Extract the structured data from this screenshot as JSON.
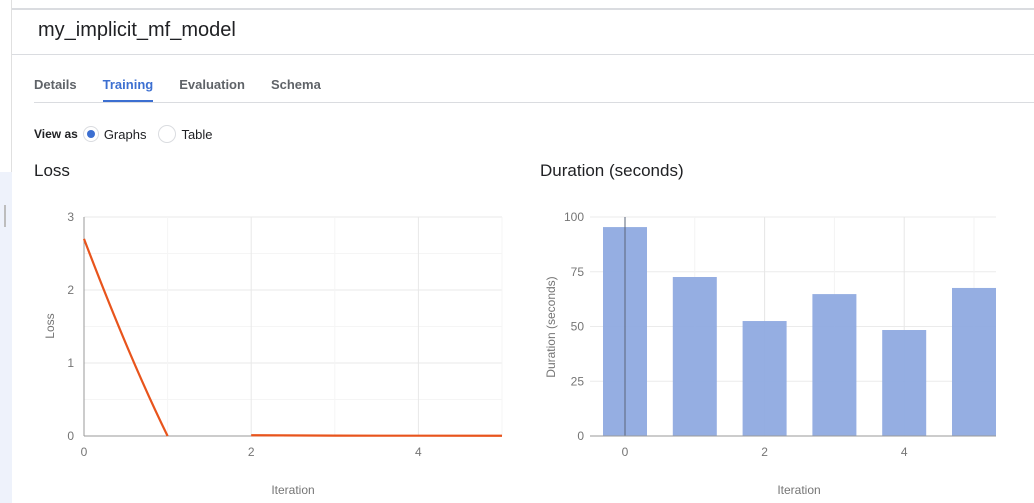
{
  "header": {
    "title": "my_implicit_mf_model"
  },
  "tabs": [
    {
      "label": "Details"
    },
    {
      "label": "Training",
      "active": true
    },
    {
      "label": "Evaluation"
    },
    {
      "label": "Schema"
    }
  ],
  "view_as": {
    "label": "View as",
    "options": [
      {
        "label": "Graphs",
        "selected": true
      },
      {
        "label": "Table",
        "selected": false
      }
    ]
  },
  "accent": "#3c6fd1",
  "chart_data": [
    {
      "type": "line",
      "title": "Loss",
      "xlabel": "Iteration",
      "ylabel": "Loss",
      "x": [
        0,
        1,
        2,
        3,
        4,
        5
      ],
      "series": [
        {
          "values": [
            2.7,
            0,
            0.01,
            0.005,
            0.004,
            0.003
          ],
          "color": "#e8541c"
        }
      ],
      "xlim": [
        0,
        5
      ],
      "ylim": [
        0,
        3
      ],
      "xticks": [
        "0",
        "2",
        "4"
      ],
      "yticks": [
        "0",
        "1",
        "2",
        "3"
      ],
      "grid": true
    },
    {
      "type": "bar",
      "title": "Duration (seconds)",
      "xlabel": "Iteration",
      "ylabel": "Duration (seconds)",
      "categories": [
        0,
        1,
        2,
        3,
        4,
        5
      ],
      "values": [
        95.4,
        72.6,
        52.5,
        64.8,
        48.4,
        67.6
      ],
      "color": "#8faae0",
      "ylim": [
        0,
        100
      ],
      "xticks": [
        "0",
        "2",
        "4"
      ],
      "yticks": [
        "0",
        "25",
        "50",
        "75",
        "100"
      ],
      "grid": true
    }
  ]
}
